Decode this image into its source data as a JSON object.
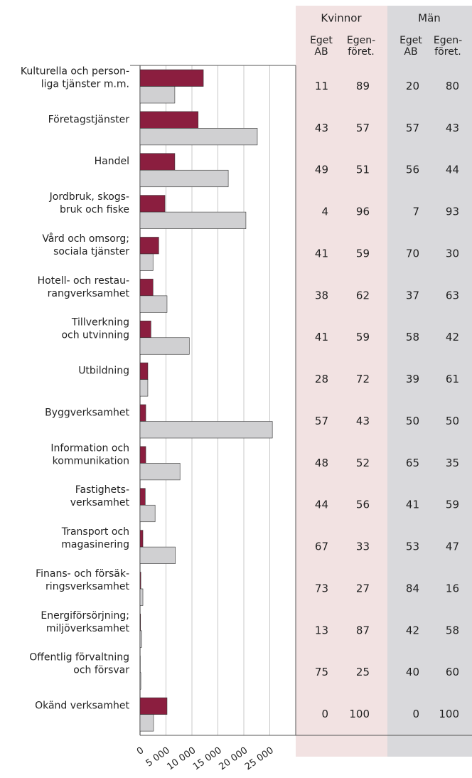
{
  "chart_data": {
    "type": "bar",
    "orientation": "horizontal",
    "categories": [
      [
        "Kulturella och person-",
        "liga tjänster m.m."
      ],
      [
        "Företagstjänster"
      ],
      [
        "Handel"
      ],
      [
        "Jordbruk, skogs-",
        "bruk och fiske"
      ],
      [
        "Vård och omsorg;",
        "sociala tjänster"
      ],
      [
        "Hotell- och restau-",
        "rangverksamhet"
      ],
      [
        "Tillverkning",
        "och utvinning"
      ],
      [
        "Utbildning"
      ],
      [
        "Byggverksamhet"
      ],
      [
        "Information och",
        "kommunikation"
      ],
      [
        "Fastighets-",
        "verksamhet"
      ],
      [
        "Transport och",
        "magasinering"
      ],
      [
        "Finans- och försäk-",
        "ringsverksamhet"
      ],
      [
        "Energiförsörjning;",
        "miljöverksamhet"
      ],
      [
        "Offentlig förvaltning",
        "och försvar"
      ],
      [
        "Okänd verksamhet"
      ]
    ],
    "series": [
      {
        "name": "Kvinnor",
        "color": "#8b1e3f",
        "values": [
          12200,
          11200,
          6700,
          4800,
          3600,
          2500,
          2100,
          1500,
          1100,
          1100,
          1000,
          550,
          150,
          100,
          50,
          5200
        ]
      },
      {
        "name": "Män",
        "color": "#d0d0d2",
        "values": [
          6700,
          22600,
          17000,
          20400,
          2500,
          5200,
          9500,
          1500,
          25500,
          7700,
          2900,
          6800,
          550,
          300,
          150,
          2600
        ]
      }
    ],
    "xlim": [
      0,
      30000
    ],
    "xticks": [
      0,
      {
        "value": 5000,
        "label": "5 000"
      },
      {
        "value": 10000,
        "label": "10 000"
      },
      {
        "value": 15000,
        "label": "15 000"
      },
      {
        "value": 20000,
        "label": "20 000"
      },
      {
        "value": 25000,
        "label": "25 000"
      }
    ],
    "grid": true
  },
  "table": {
    "columns": [
      [
        "Eget",
        "AB"
      ],
      [
        "Egen-",
        "föret."
      ]
    ],
    "rows": [
      [
        11,
        89,
        20,
        80
      ],
      [
        43,
        57,
        57,
        43
      ],
      [
        49,
        51,
        56,
        44
      ],
      [
        4,
        96,
        7,
        93
      ],
      [
        41,
        59,
        70,
        30
      ],
      [
        38,
        62,
        37,
        63
      ],
      [
        41,
        59,
        58,
        42
      ],
      [
        28,
        72,
        39,
        61
      ],
      [
        57,
        43,
        50,
        50
      ],
      [
        48,
        52,
        65,
        35
      ],
      [
        44,
        56,
        41,
        59
      ],
      [
        67,
        33,
        53,
        47
      ],
      [
        73,
        27,
        84,
        16
      ],
      [
        13,
        87,
        42,
        58
      ],
      [
        75,
        25,
        40,
        60
      ],
      [
        0,
        100,
        0,
        100
      ]
    ]
  }
}
